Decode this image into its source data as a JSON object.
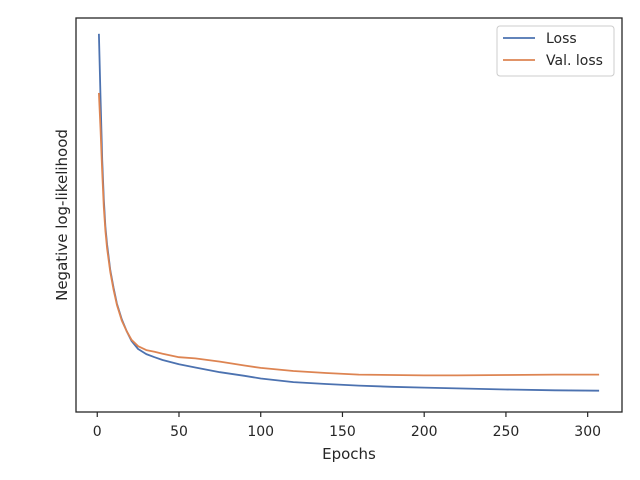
{
  "chart_data": {
    "type": "line",
    "xlabel": "Epochs",
    "ylabel": "Negative log-likelihood",
    "xlim": [
      -13,
      321
    ],
    "ylim": [
      0,
      1
    ],
    "x_ticks": [
      0,
      50,
      100,
      150,
      200,
      250,
      300
    ],
    "y_ticks_shown": false,
    "grid": false,
    "legend_position": "top-right",
    "series": [
      {
        "name": "Loss",
        "color": "#4c72b0",
        "points": [
          [
            1,
            0.96
          ],
          [
            2,
            0.8
          ],
          [
            3,
            0.64
          ],
          [
            4,
            0.54
          ],
          [
            5,
            0.47
          ],
          [
            6,
            0.425
          ],
          [
            8,
            0.36
          ],
          [
            10,
            0.315
          ],
          [
            12,
            0.275
          ],
          [
            15,
            0.235
          ],
          [
            18,
            0.205
          ],
          [
            21,
            0.18
          ],
          [
            25,
            0.16
          ],
          [
            30,
            0.147
          ],
          [
            35,
            0.139
          ],
          [
            40,
            0.132
          ],
          [
            50,
            0.121
          ],
          [
            60,
            0.113
          ],
          [
            75,
            0.101
          ],
          [
            90,
            0.092
          ],
          [
            100,
            0.085
          ],
          [
            120,
            0.076
          ],
          [
            140,
            0.071
          ],
          [
            160,
            0.067
          ],
          [
            180,
            0.064
          ],
          [
            200,
            0.062
          ],
          [
            220,
            0.06
          ],
          [
            250,
            0.057
          ],
          [
            280,
            0.055
          ],
          [
            307,
            0.054
          ]
        ]
      },
      {
        "name": "Val. loss",
        "color": "#dd8452",
        "points": [
          [
            1,
            0.81
          ],
          [
            2,
            0.72
          ],
          [
            3,
            0.61
          ],
          [
            4,
            0.52
          ],
          [
            5,
            0.46
          ],
          [
            6,
            0.415
          ],
          [
            8,
            0.355
          ],
          [
            10,
            0.31
          ],
          [
            12,
            0.272
          ],
          [
            15,
            0.232
          ],
          [
            18,
            0.205
          ],
          [
            21,
            0.183
          ],
          [
            25,
            0.167
          ],
          [
            30,
            0.157
          ],
          [
            35,
            0.153
          ],
          [
            40,
            0.148
          ],
          [
            50,
            0.139
          ],
          [
            60,
            0.136
          ],
          [
            75,
            0.128
          ],
          [
            90,
            0.118
          ],
          [
            100,
            0.112
          ],
          [
            120,
            0.104
          ],
          [
            140,
            0.099
          ],
          [
            160,
            0.095
          ],
          [
            180,
            0.094
          ],
          [
            200,
            0.093
          ],
          [
            220,
            0.093
          ],
          [
            250,
            0.094
          ],
          [
            280,
            0.095
          ],
          [
            307,
            0.095
          ]
        ]
      }
    ]
  }
}
